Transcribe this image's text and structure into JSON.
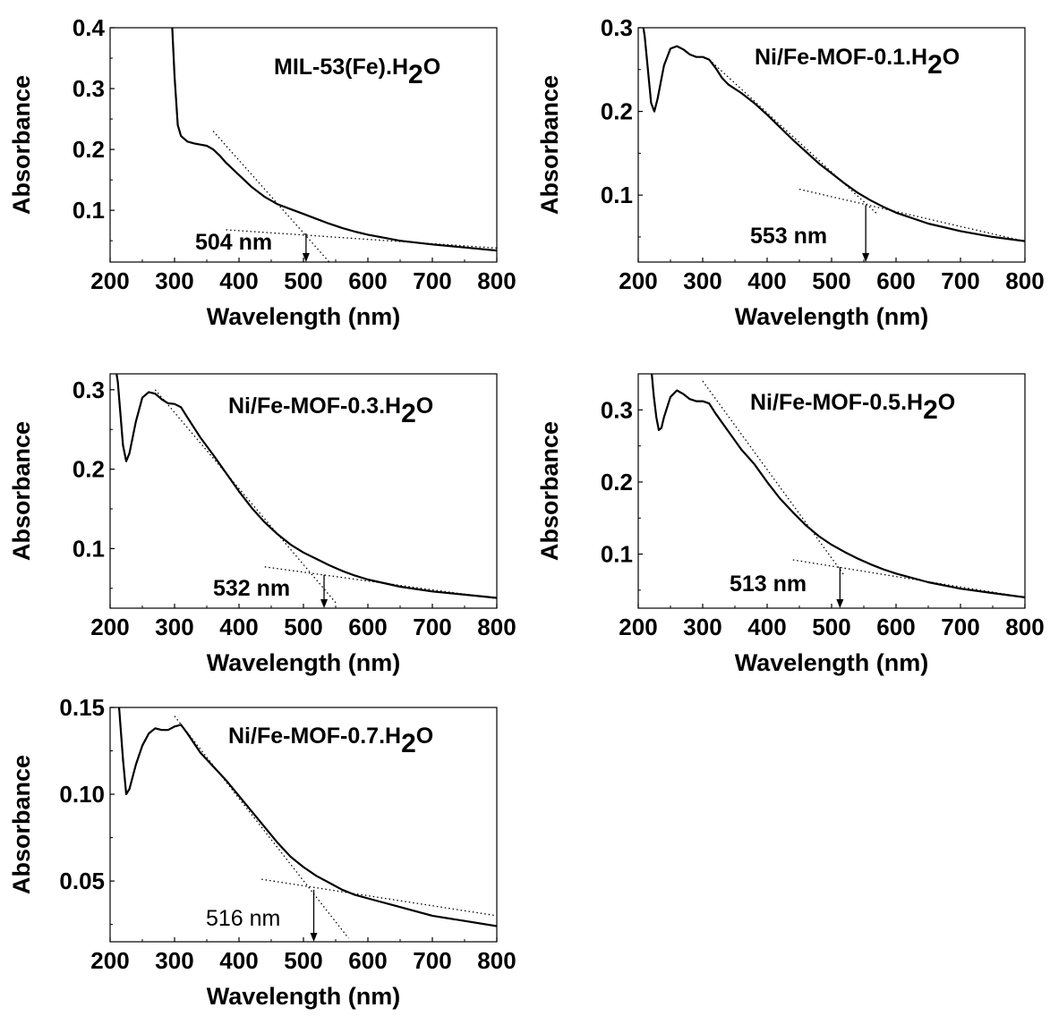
{
  "chart_data": [
    {
      "type": "line",
      "title": "MIL-53(Fe).H",
      "title_sub": "2",
      "title_tail": "O",
      "xlabel": "Wavelength (nm)",
      "ylabel": "Absorbance",
      "xlim": [
        200,
        800
      ],
      "ylim": [
        0.015,
        0.4
      ],
      "xticks": [
        200,
        300,
        400,
        500,
        600,
        700,
        800
      ],
      "xtick_labels": [
        "200",
        "300",
        "400",
        "500",
        "600",
        "700",
        "800"
      ],
      "yticks": [
        0.1,
        0.2,
        0.3,
        0.4
      ],
      "ytick_labels": [
        "0.1",
        "0.2",
        "0.3",
        "0.4"
      ],
      "series": [
        {
          "x": [
            296,
            300,
            305,
            310,
            320,
            330,
            340,
            350,
            360,
            370,
            380,
            400,
            420,
            440,
            460,
            480,
            500,
            520,
            540,
            560,
            580,
            600,
            650,
            700,
            750,
            800
          ],
          "values": [
            0.41,
            0.32,
            0.24,
            0.222,
            0.213,
            0.21,
            0.208,
            0.206,
            0.2,
            0.19,
            0.178,
            0.158,
            0.138,
            0.122,
            0.11,
            0.102,
            0.094,
            0.086,
            0.078,
            0.071,
            0.065,
            0.06,
            0.05,
            0.044,
            0.039,
            0.034
          ]
        }
      ],
      "tangent_lines": [
        {
          "x": [
            360,
            540
          ],
          "values": [
            0.23,
            0.015
          ]
        },
        {
          "x": [
            380,
            800
          ],
          "values": [
            0.068,
            0.038
          ]
        }
      ],
      "annotation": {
        "text": "504 nm",
        "x": 504,
        "y_from": 0.062,
        "y_to": 0.015
      }
    },
    {
      "type": "line",
      "title": "Ni/Fe-MOF-0.1.H",
      "title_sub": "2",
      "title_tail": "O",
      "xlabel": "Wavelength (nm)",
      "ylabel": "Absorbance",
      "xlim": [
        200,
        800
      ],
      "ylim": [
        0.02,
        0.3
      ],
      "xticks": [
        200,
        300,
        400,
        500,
        600,
        700,
        800
      ],
      "xtick_labels": [
        "200",
        "300",
        "400",
        "500",
        "600",
        "700",
        "800"
      ],
      "yticks": [
        0.1,
        0.2,
        0.3
      ],
      "ytick_labels": [
        "0.1",
        "0.2",
        "0.3"
      ],
      "series": [
        {
          "x": [
            206,
            210,
            215,
            220,
            225,
            230,
            240,
            250,
            260,
            270,
            280,
            290,
            300,
            310,
            320,
            330,
            340,
            350,
            360,
            380,
            400,
            420,
            440,
            460,
            480,
            500,
            520,
            540,
            560,
            580,
            600,
            650,
            700,
            750,
            800
          ],
          "values": [
            0.31,
            0.29,
            0.25,
            0.21,
            0.2,
            0.215,
            0.255,
            0.275,
            0.278,
            0.274,
            0.268,
            0.265,
            0.265,
            0.262,
            0.252,
            0.24,
            0.232,
            0.227,
            0.222,
            0.21,
            0.196,
            0.181,
            0.166,
            0.152,
            0.138,
            0.126,
            0.114,
            0.103,
            0.094,
            0.086,
            0.079,
            0.066,
            0.057,
            0.05,
            0.045
          ]
        }
      ],
      "tangent_lines": [
        {
          "x": [
            310,
            570
          ],
          "values": [
            0.262,
            0.078
          ]
        },
        {
          "x": [
            450,
            810
          ],
          "values": [
            0.107,
            0.043
          ]
        }
      ],
      "annotation": {
        "text": "553 nm",
        "x": 553,
        "y_from": 0.088,
        "y_to": 0.02
      }
    },
    {
      "type": "line",
      "title": "Ni/Fe-MOF-0.3.H",
      "title_sub": "2",
      "title_tail": "O",
      "xlabel": "Wavelength (nm)",
      "ylabel": "Absorbance",
      "xlim": [
        200,
        800
      ],
      "ylim": [
        0.025,
        0.32
      ],
      "xticks": [
        200,
        300,
        400,
        500,
        600,
        700,
        800
      ],
      "xtick_labels": [
        "200",
        "300",
        "400",
        "500",
        "600",
        "700",
        "800"
      ],
      "yticks": [
        0.1,
        0.2,
        0.3
      ],
      "ytick_labels": [
        "0.1",
        "0.2",
        "0.3"
      ],
      "series": [
        {
          "x": [
            208,
            212,
            216,
            220,
            225,
            230,
            240,
            250,
            260,
            270,
            280,
            290,
            300,
            310,
            320,
            340,
            360,
            380,
            400,
            420,
            440,
            460,
            480,
            500,
            520,
            540,
            560,
            580,
            600,
            650,
            700,
            750,
            800
          ],
          "values": [
            0.33,
            0.31,
            0.27,
            0.23,
            0.21,
            0.22,
            0.26,
            0.29,
            0.297,
            0.295,
            0.288,
            0.283,
            0.282,
            0.278,
            0.265,
            0.24,
            0.218,
            0.195,
            0.172,
            0.151,
            0.133,
            0.118,
            0.105,
            0.095,
            0.087,
            0.079,
            0.072,
            0.066,
            0.061,
            0.052,
            0.046,
            0.042,
            0.038
          ]
        }
      ],
      "tangent_lines": [
        {
          "x": [
            270,
            550
          ],
          "values": [
            0.3,
            0.032
          ]
        },
        {
          "x": [
            440,
            800
          ],
          "values": [
            0.077,
            0.037
          ]
        }
      ],
      "annotation": {
        "text": "532 nm",
        "x": 532,
        "y_from": 0.067,
        "y_to": 0.025
      }
    },
    {
      "type": "line",
      "title": "Ni/Fe-MOF-0.5.H",
      "title_sub": "2",
      "title_tail": "O",
      "xlabel": "Wavelength (nm)",
      "ylabel": "Absorbance",
      "xlim": [
        200,
        800
      ],
      "ylim": [
        0.025,
        0.35
      ],
      "xticks": [
        200,
        300,
        400,
        500,
        600,
        700,
        800
      ],
      "xtick_labels": [
        "200",
        "300",
        "400",
        "500",
        "600",
        "700",
        "800"
      ],
      "yticks": [
        0.1,
        0.2,
        0.3
      ],
      "ytick_labels": [
        "0.1",
        "0.2",
        "0.3"
      ],
      "series": [
        {
          "x": [
            220,
            224,
            228,
            232,
            236,
            240,
            250,
            260,
            270,
            280,
            290,
            300,
            310,
            320,
            340,
            360,
            380,
            400,
            420,
            440,
            460,
            480,
            500,
            520,
            540,
            560,
            580,
            600,
            650,
            700,
            750,
            800
          ],
          "values": [
            0.36,
            0.32,
            0.29,
            0.272,
            0.275,
            0.29,
            0.318,
            0.327,
            0.322,
            0.315,
            0.312,
            0.312,
            0.309,
            0.295,
            0.27,
            0.245,
            0.225,
            0.2,
            0.177,
            0.158,
            0.14,
            0.125,
            0.113,
            0.103,
            0.094,
            0.086,
            0.079,
            0.073,
            0.061,
            0.052,
            0.046,
            0.04
          ]
        }
      ],
      "tangent_lines": [
        {
          "x": [
            300,
            520
          ],
          "values": [
            0.34,
            0.07
          ]
        },
        {
          "x": [
            440,
            800
          ],
          "values": [
            0.092,
            0.04
          ]
        }
      ],
      "annotation": {
        "text": "513 nm",
        "x": 513,
        "y_from": 0.082,
        "y_to": 0.025
      }
    },
    {
      "type": "line",
      "title": "Ni/Fe-MOF-0.7.H",
      "title_sub": "2",
      "title_tail": "O",
      "xlabel": "Wavelength (nm)",
      "ylabel": "Absorbance",
      "xlim": [
        200,
        800
      ],
      "ylim": [
        0.015,
        0.15
      ],
      "xticks": [
        200,
        300,
        400,
        500,
        600,
        700,
        800
      ],
      "xtick_labels": [
        "200",
        "300",
        "400",
        "500",
        "600",
        "700",
        "800"
      ],
      "yticks": [
        0.05,
        0.1,
        0.15
      ],
      "ytick_labels": [
        "0.05",
        "0.10",
        "0.15"
      ],
      "series": [
        {
          "x": [
            212,
            216,
            220,
            225,
            230,
            240,
            250,
            260,
            270,
            280,
            290,
            300,
            310,
            320,
            340,
            360,
            380,
            400,
            420,
            440,
            460,
            480,
            500,
            520,
            540,
            560,
            580,
            600,
            650,
            700,
            750,
            800
          ],
          "values": [
            0.16,
            0.14,
            0.12,
            0.1,
            0.103,
            0.117,
            0.128,
            0.135,
            0.138,
            0.137,
            0.137,
            0.139,
            0.14,
            0.135,
            0.124,
            0.116,
            0.108,
            0.099,
            0.09,
            0.081,
            0.072,
            0.064,
            0.058,
            0.053,
            0.049,
            0.045,
            0.042,
            0.04,
            0.035,
            0.03,
            0.027,
            0.024
          ]
        }
      ],
      "tangent_lines": [
        {
          "x": [
            300,
            570
          ],
          "values": [
            0.145,
            0.017
          ]
        },
        {
          "x": [
            435,
            800
          ],
          "values": [
            0.051,
            0.03
          ]
        }
      ],
      "annotation": {
        "text": "516 nm",
        "x": 516,
        "y_from": 0.045,
        "y_to": 0.015
      }
    }
  ]
}
